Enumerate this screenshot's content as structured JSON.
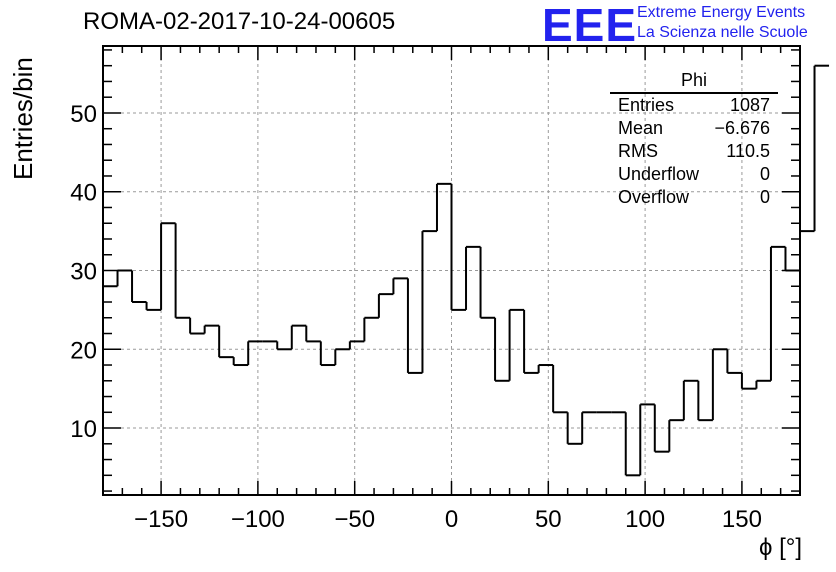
{
  "title": "ROMA-02-2017-10-24-00605",
  "logo": {
    "text": "EEE",
    "line1": "Extreme Energy Events",
    "line2": "La Scienza nelle Scuole",
    "color": "#2222ee"
  },
  "stats": {
    "name": "Phi",
    "rows": [
      {
        "label": "Entries",
        "value": "1087"
      },
      {
        "label": "Mean",
        "value": "−6.676"
      },
      {
        "label": "RMS",
        "value": "110.5"
      },
      {
        "label": "Underflow",
        "value": "0"
      },
      {
        "label": "Overflow",
        "value": "0"
      }
    ]
  },
  "chart_data": {
    "type": "histogram",
    "title": "ROMA-02-2017-10-24-00605",
    "xlabel": "ϕ [°]",
    "ylabel": "Entries/bin",
    "xlim": [
      -180,
      180
    ],
    "ylim": [
      1.5,
      58.5
    ],
    "bin_width": 7.5,
    "x_ticks": [
      -150,
      -100,
      -50,
      0,
      50,
      100,
      150
    ],
    "x_tick_labels": [
      "−150",
      "−100",
      "−50",
      "0",
      "50",
      "100",
      "150"
    ],
    "y_ticks": [
      10,
      20,
      30,
      40,
      50
    ],
    "grid": true,
    "line_color": "#000000",
    "values": [
      28,
      30,
      26,
      25,
      36,
      24,
      22,
      23,
      19,
      18,
      21,
      21,
      20,
      23,
      21,
      18,
      20,
      21,
      24,
      27,
      29,
      17,
      35,
      41,
      25,
      33,
      24,
      16,
      25,
      17,
      18,
      12,
      8,
      12,
      12,
      12,
      4,
      13,
      7,
      11,
      16,
      11,
      20,
      17,
      15,
      16,
      33,
      30,
      35,
      56
    ]
  }
}
